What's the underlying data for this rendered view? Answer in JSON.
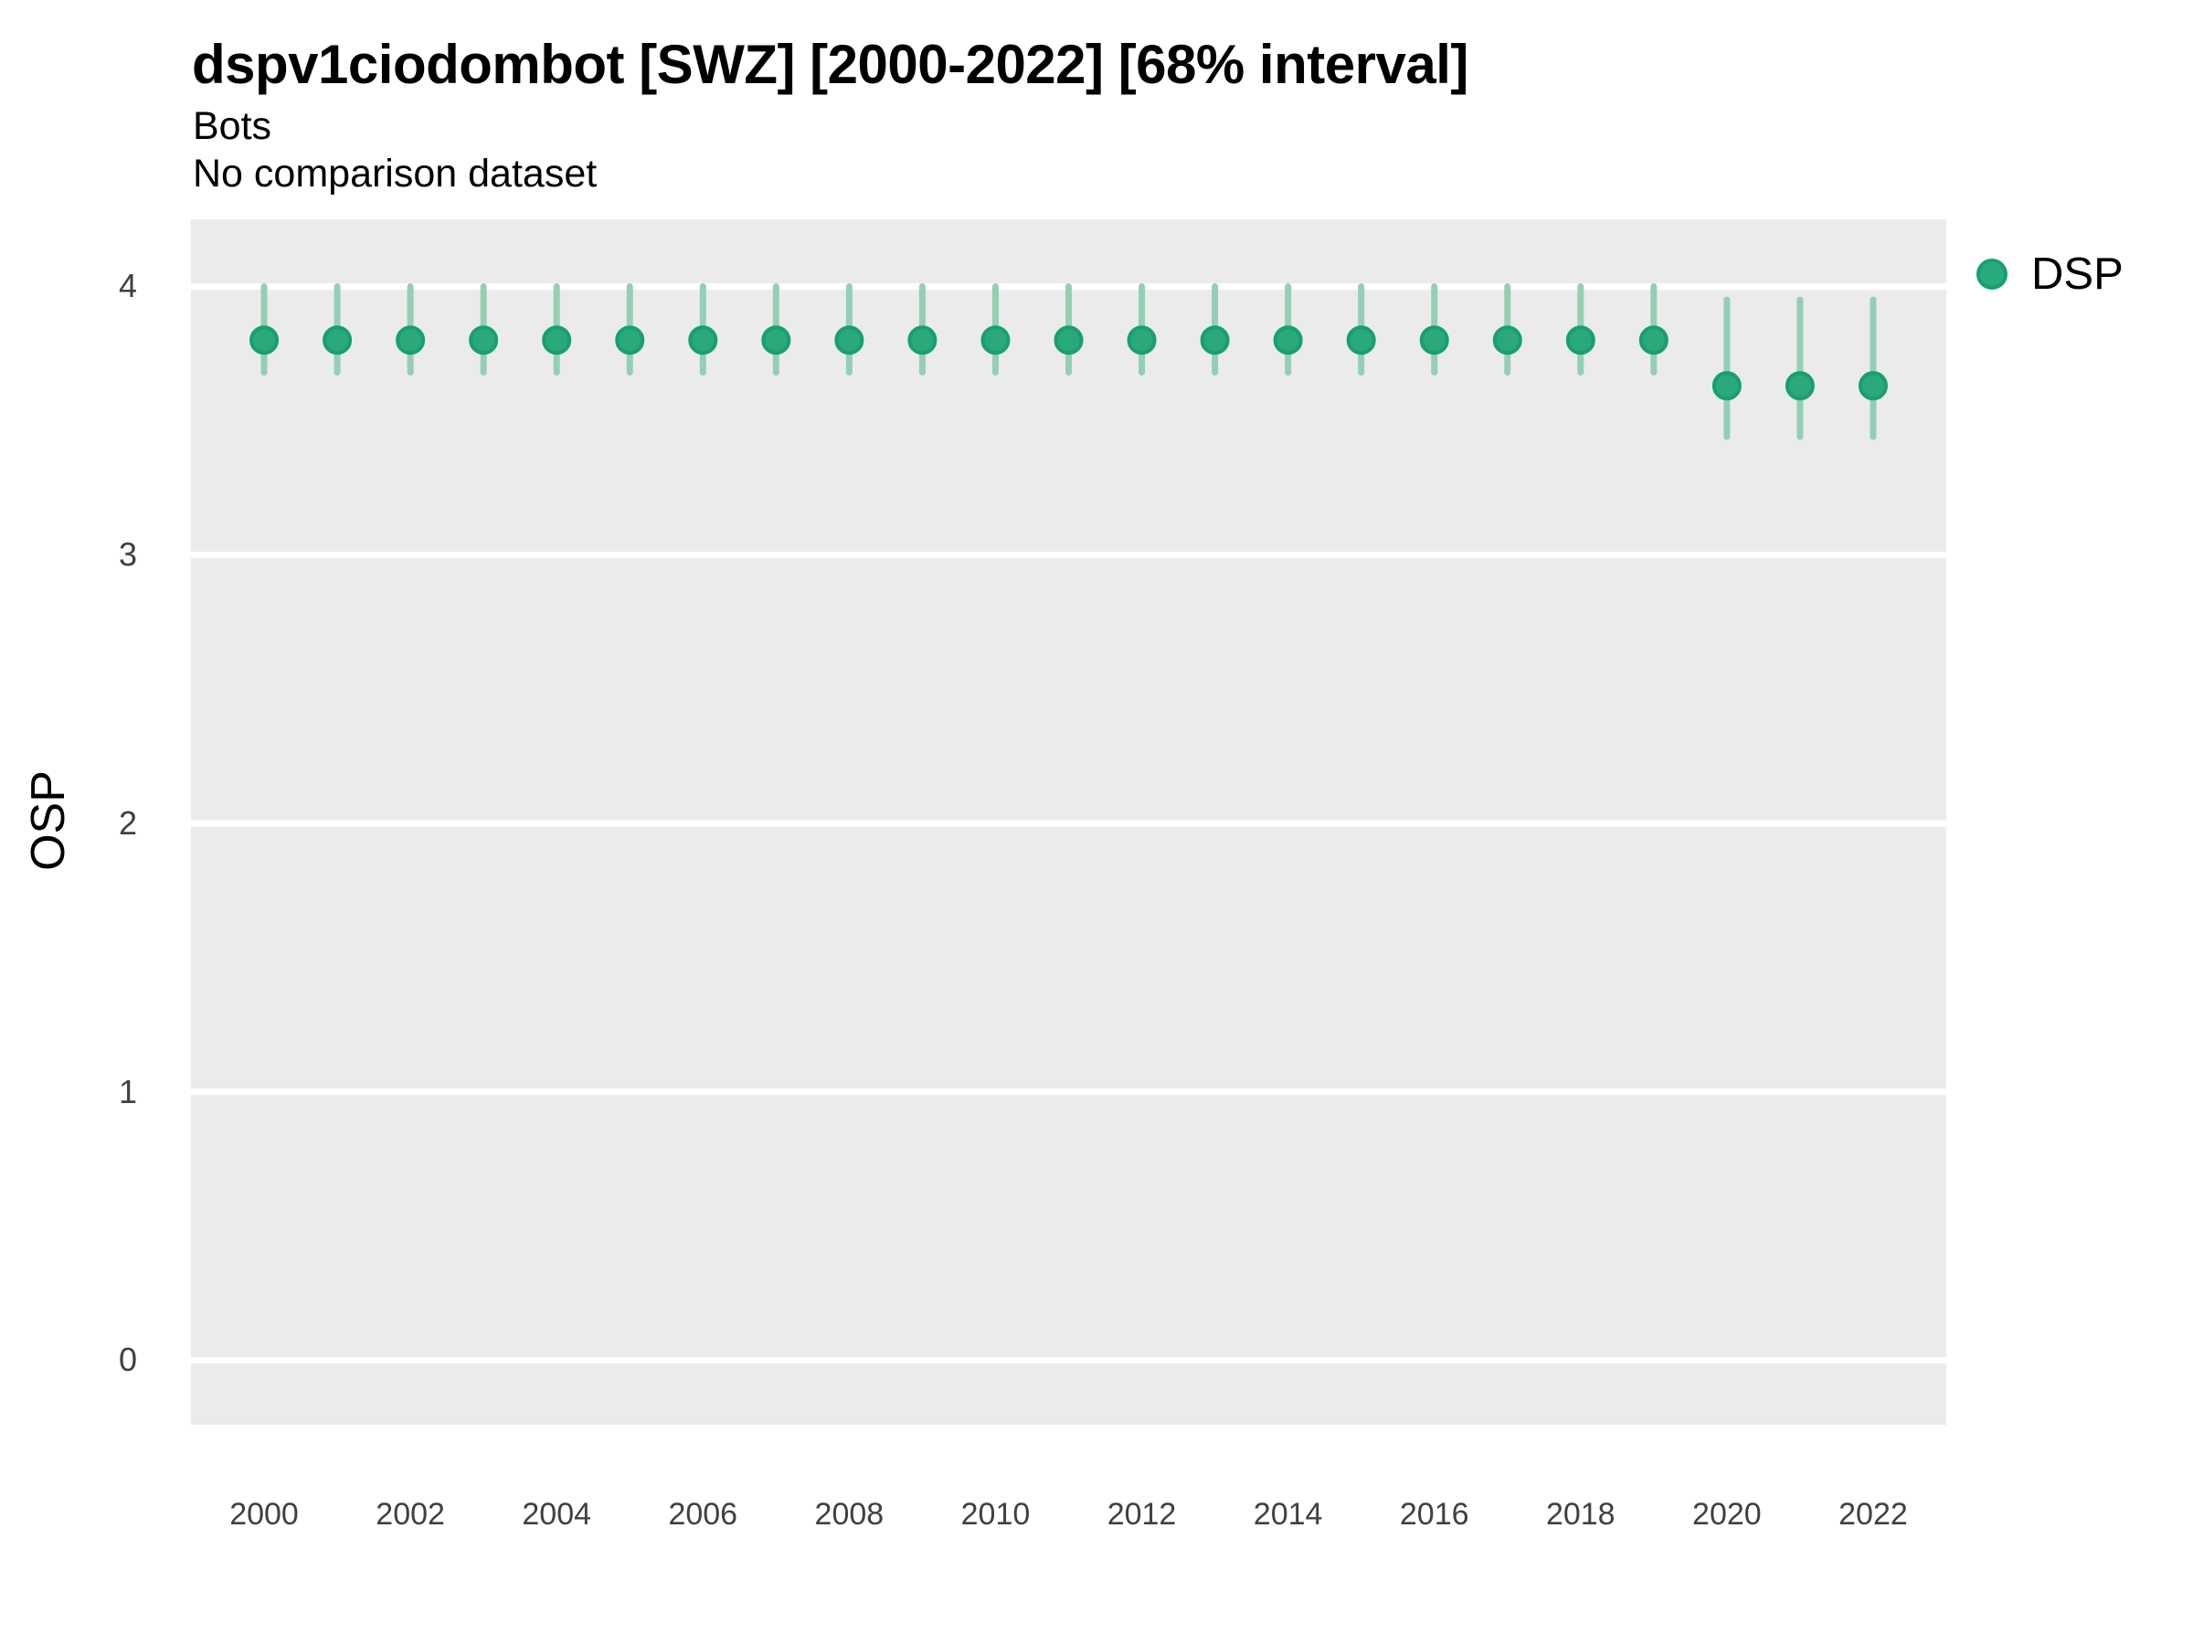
{
  "header": {
    "title": "dspv1ciodombot [SWZ] [2000-2022] [68% interval]",
    "subtitle1": "Bots",
    "subtitle2": "No comparison dataset"
  },
  "legend": {
    "items": [
      {
        "label": "DSP",
        "marker": "circle-icon"
      }
    ]
  },
  "style": {
    "panel_bg": "#ebebeb",
    "grid_color": "#ffffff",
    "point_fill": "#2aa97c",
    "point_stroke": "#17a06e",
    "interval_color": "#93cfb5",
    "axis_text_color": "#404040",
    "text_color": "#000000"
  },
  "chart_data": {
    "type": "pointrange",
    "title": "dspv1ciodombot [SWZ] [2000-2022] [68% interval]",
    "subtitle": "Bots",
    "note": "No comparison dataset",
    "xlabel": "",
    "ylabel": "OSP",
    "interval_level": "68%",
    "grid": "horizontal-major-only",
    "legend_position": "right-top",
    "xlim": [
      1999,
      2023
    ],
    "ylim": [
      -0.24,
      4.25
    ],
    "x_ticks": [
      2000,
      2002,
      2004,
      2006,
      2008,
      2010,
      2012,
      2014,
      2016,
      2018,
      2020,
      2022
    ],
    "y_ticks": [
      0,
      1,
      2,
      3,
      4
    ],
    "series": [
      {
        "name": "DSP",
        "points": [
          {
            "x": 2000,
            "y": 3.8,
            "lo": 3.68,
            "hi": 4.0
          },
          {
            "x": 2001,
            "y": 3.8,
            "lo": 3.68,
            "hi": 4.0
          },
          {
            "x": 2002,
            "y": 3.8,
            "lo": 3.68,
            "hi": 4.0
          },
          {
            "x": 2003,
            "y": 3.8,
            "lo": 3.68,
            "hi": 4.0
          },
          {
            "x": 2004,
            "y": 3.8,
            "lo": 3.68,
            "hi": 4.0
          },
          {
            "x": 2005,
            "y": 3.8,
            "lo": 3.68,
            "hi": 4.0
          },
          {
            "x": 2006,
            "y": 3.8,
            "lo": 3.68,
            "hi": 4.0
          },
          {
            "x": 2007,
            "y": 3.8,
            "lo": 3.68,
            "hi": 4.0
          },
          {
            "x": 2008,
            "y": 3.8,
            "lo": 3.68,
            "hi": 4.0
          },
          {
            "x": 2009,
            "y": 3.8,
            "lo": 3.68,
            "hi": 4.0
          },
          {
            "x": 2010,
            "y": 3.8,
            "lo": 3.68,
            "hi": 4.0
          },
          {
            "x": 2011,
            "y": 3.8,
            "lo": 3.68,
            "hi": 4.0
          },
          {
            "x": 2012,
            "y": 3.8,
            "lo": 3.68,
            "hi": 4.0
          },
          {
            "x": 2013,
            "y": 3.8,
            "lo": 3.68,
            "hi": 4.0
          },
          {
            "x": 2014,
            "y": 3.8,
            "lo": 3.68,
            "hi": 4.0
          },
          {
            "x": 2015,
            "y": 3.8,
            "lo": 3.68,
            "hi": 4.0
          },
          {
            "x": 2016,
            "y": 3.8,
            "lo": 3.68,
            "hi": 4.0
          },
          {
            "x": 2017,
            "y": 3.8,
            "lo": 3.68,
            "hi": 4.0
          },
          {
            "x": 2018,
            "y": 3.8,
            "lo": 3.68,
            "hi": 4.0
          },
          {
            "x": 2019,
            "y": 3.8,
            "lo": 3.68,
            "hi": 4.0
          },
          {
            "x": 2020,
            "y": 3.63,
            "lo": 3.44,
            "hi": 3.95
          },
          {
            "x": 2021,
            "y": 3.63,
            "lo": 3.44,
            "hi": 3.95
          },
          {
            "x": 2022,
            "y": 3.63,
            "lo": 3.44,
            "hi": 3.95
          }
        ]
      }
    ]
  }
}
